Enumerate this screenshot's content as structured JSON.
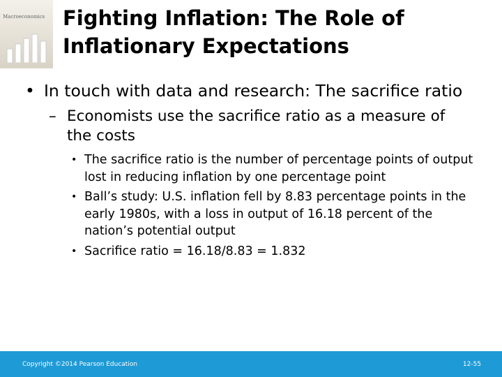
{
  "cover": {
    "title": "Macroeconomics"
  },
  "header": {
    "title": "Fighting Inflation: The Role of Inflationary Expectations"
  },
  "bullets": [
    {
      "text": "In touch with data and research: The sacrifice ratio",
      "children": [
        {
          "text": "Economists use the sacrifice ratio as a measure of the costs",
          "children": [
            {
              "text": "The sacrifice ratio is the number of percentage points of output lost in reducing inflation by one percentage point"
            },
            {
              "text": "Ball’s study: U.S. inflation fell by 8.83 percentage points in the early 1980s, with a loss in output of 16.18 percent of the nation’s potential output"
            },
            {
              "text": "Sacrifice ratio = 16.18/8.83 = 1.832"
            }
          ]
        }
      ]
    }
  ],
  "footer": {
    "copyright": "Copyright ©2014 Pearson Education",
    "page": "12-55"
  }
}
